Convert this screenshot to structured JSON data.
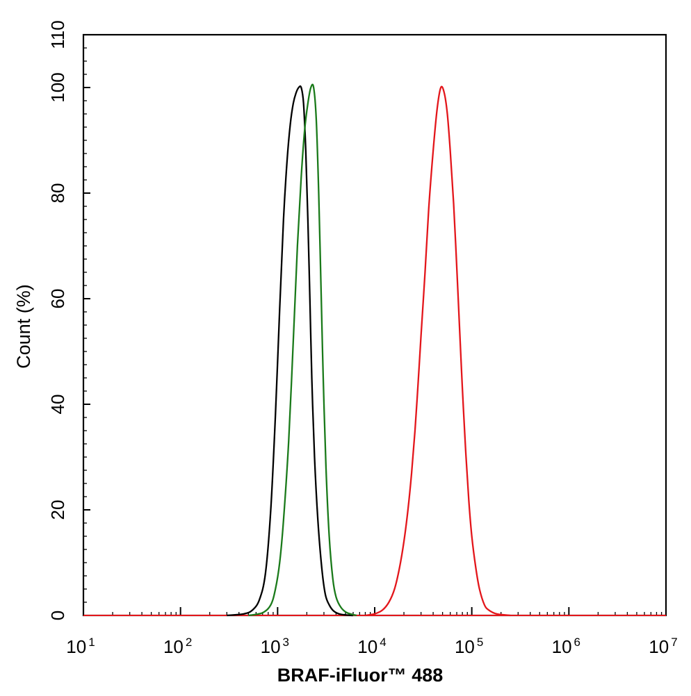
{
  "chart_data": {
    "type": "line",
    "xscale": "log",
    "xlim": [
      10,
      10000000
    ],
    "ylim": [
      0,
      110
    ],
    "xlabel": "BRAF-iFluor™ 488",
    "ylabel": "Count  (%)",
    "grid": false,
    "legend": "none",
    "x_ticks": [
      {
        "base": "10",
        "exp": "1",
        "value": 10
      },
      {
        "base": "10",
        "exp": "2",
        "value": 100
      },
      {
        "base": "10",
        "exp": "3",
        "value": 1000
      },
      {
        "base": "10",
        "exp": "4",
        "value": 10000
      },
      {
        "base": "10",
        "exp": "5",
        "value": 100000
      },
      {
        "base": "10",
        "exp": "6",
        "value": 1000000
      },
      {
        "base": "10",
        "exp": "7",
        "value": 10000000
      }
    ],
    "y_ticks": [
      "0",
      "20",
      "40",
      "60",
      "80",
      "100",
      "110"
    ],
    "series": [
      {
        "color": "#000000",
        "points": [
          [
            300,
            0
          ],
          [
            450,
            0.3
          ],
          [
            550,
            1
          ],
          [
            650,
            3
          ],
          [
            750,
            8
          ],
          [
            850,
            20
          ],
          [
            950,
            38
          ],
          [
            1050,
            58
          ],
          [
            1150,
            75
          ],
          [
            1250,
            86
          ],
          [
            1350,
            93
          ],
          [
            1450,
            97
          ],
          [
            1550,
            99
          ],
          [
            1650,
            100
          ],
          [
            1750,
            100
          ],
          [
            1850,
            97
          ],
          [
            1950,
            88
          ],
          [
            2050,
            75
          ],
          [
            2150,
            60
          ],
          [
            2250,
            45
          ],
          [
            2400,
            30
          ],
          [
            2600,
            18
          ],
          [
            2850,
            9
          ],
          [
            3100,
            4
          ],
          [
            3400,
            2
          ],
          [
            3800,
            0.8
          ],
          [
            4500,
            0.2
          ],
          [
            6000,
            0
          ]
        ]
      },
      {
        "color": "#1a7a1a",
        "points": [
          [
            500,
            0
          ],
          [
            700,
            0.5
          ],
          [
            850,
            2
          ],
          [
            950,
            5
          ],
          [
            1050,
            10
          ],
          [
            1150,
            18
          ],
          [
            1300,
            33
          ],
          [
            1450,
            52
          ],
          [
            1600,
            70
          ],
          [
            1750,
            83
          ],
          [
            1900,
            92
          ],
          [
            2050,
            97
          ],
          [
            2200,
            100
          ],
          [
            2350,
            100
          ],
          [
            2500,
            94
          ],
          [
            2650,
            80
          ],
          [
            2800,
            62
          ],
          [
            2950,
            45
          ],
          [
            3150,
            28
          ],
          [
            3400,
            15
          ],
          [
            3700,
            7
          ],
          [
            4000,
            3.5
          ],
          [
            4500,
            1.5
          ],
          [
            5200,
            0.5
          ],
          [
            6500,
            0
          ]
        ]
      },
      {
        "color": "#e3161b",
        "points": [
          [
            8000,
            0
          ],
          [
            10000,
            0.3
          ],
          [
            12000,
            1
          ],
          [
            14000,
            2.5
          ],
          [
            16000,
            5
          ],
          [
            18000,
            9
          ],
          [
            20000,
            14
          ],
          [
            22000,
            20
          ],
          [
            24000,
            27
          ],
          [
            26000,
            35
          ],
          [
            28000,
            44
          ],
          [
            30000,
            53
          ],
          [
            33000,
            65
          ],
          [
            36000,
            77
          ],
          [
            40000,
            88
          ],
          [
            44000,
            96
          ],
          [
            48000,
            100
          ],
          [
            52000,
            99
          ],
          [
            56000,
            95
          ],
          [
            60000,
            88
          ],
          [
            65000,
            78
          ],
          [
            70000,
            66
          ],
          [
            75000,
            54
          ],
          [
            80000,
            43
          ],
          [
            86000,
            32
          ],
          [
            93000,
            22
          ],
          [
            100000,
            15
          ],
          [
            110000,
            9
          ],
          [
            120000,
            5
          ],
          [
            135000,
            2
          ],
          [
            150000,
            1
          ],
          [
            180000,
            0.3
          ],
          [
            250000,
            0
          ]
        ]
      }
    ]
  }
}
